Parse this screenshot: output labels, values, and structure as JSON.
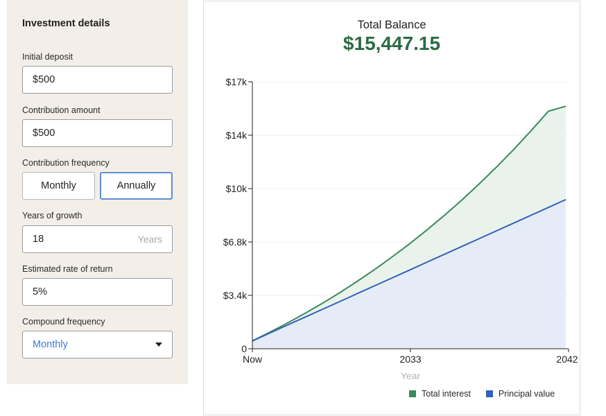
{
  "panel": {
    "title": "Investment details",
    "initial_deposit": {
      "label": "Initial deposit",
      "value": "$500"
    },
    "contribution_amount": {
      "label": "Contribution amount",
      "value": "$500"
    },
    "contribution_frequency": {
      "label": "Contribution frequency",
      "options": [
        "Monthly",
        "Annually"
      ],
      "selected": "Annually"
    },
    "years_of_growth": {
      "label": "Years of growth",
      "value": "18",
      "suffix": "Years"
    },
    "rate_of_return": {
      "label": "Estimated rate of return",
      "value": "5%"
    },
    "compound_frequency": {
      "label": "Compound frequency",
      "value": "Monthly"
    }
  },
  "summary": {
    "title": "Total Balance",
    "value": "$15,447.15"
  },
  "colors": {
    "interest": "#3a8a5c",
    "principal": "#2f62b8",
    "total_balance": "#2c6b45",
    "active_border": "#5b8fd9"
  },
  "chart_data": {
    "type": "area",
    "xlabel": "Year",
    "ylabel": "",
    "x_tick_labels": [
      "Now",
      "2033",
      "2042"
    ],
    "y_tick_labels": [
      "0",
      "$3.4k",
      "$6.8k",
      "$10k",
      "$14k",
      "$17k"
    ],
    "ylim": [
      0,
      17000
    ],
    "x": [
      2024,
      2025,
      2026,
      2027,
      2028,
      2029,
      2030,
      2031,
      2032,
      2033,
      2034,
      2035,
      2036,
      2037,
      2038,
      2039,
      2040,
      2041,
      2042
    ],
    "series": [
      {
        "name": "Total interest",
        "values": [
          500,
          1050,
          1630,
          2240,
          2880,
          3560,
          4280,
          5030,
          5830,
          6660,
          7540,
          8470,
          9440,
          10470,
          11550,
          12680,
          13880,
          15130,
          15447
        ]
      },
      {
        "name": "Principal value",
        "values": [
          500,
          1000,
          1500,
          2000,
          2500,
          3000,
          3500,
          4000,
          4500,
          5000,
          5500,
          6000,
          6500,
          7000,
          7500,
          8000,
          8500,
          9000,
          9500
        ]
      }
    ],
    "grid": true,
    "legend": "bottom-right"
  }
}
